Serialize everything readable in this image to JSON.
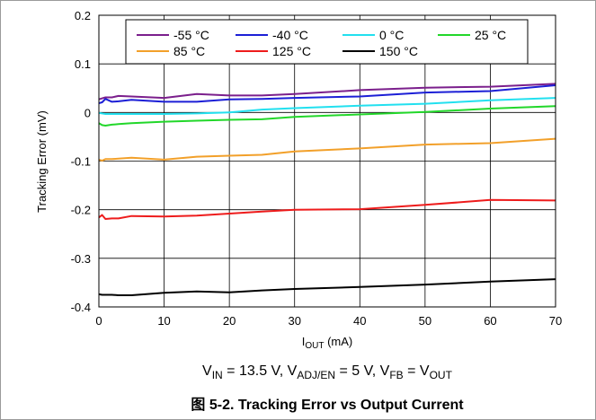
{
  "chart_data": {
    "type": "line",
    "title": "",
    "caption": "图 5-2. Tracking Error vs Output Current",
    "conditions": {
      "p1": "V",
      "p1_sub": "IN",
      "p2": " = 13.5 V, V",
      "p2_sub": "ADJ/EN",
      "p3": " = 5 V, V",
      "p3_sub": "FB",
      "p4": " = V",
      "p4_sub": "OUT"
    },
    "xlabel": {
      "main": "I",
      "sub": "OUT",
      "unit": " (mA)"
    },
    "ylabel": "Tracking Error (mV)",
    "xlim": [
      0,
      70
    ],
    "ylim": [
      -0.4,
      0.2
    ],
    "xticks": [
      "0",
      "10",
      "20",
      "30",
      "40",
      "50",
      "60",
      "70"
    ],
    "yticks": [
      "0.2",
      "0.1",
      "0",
      "-0.1",
      "-0.2",
      "-0.3",
      "-0.4"
    ],
    "grid": true,
    "legend_position": "top",
    "series": [
      {
        "name": "-55 °C",
        "color": "#7b1f8c",
        "x": [
          0,
          0.5,
          1,
          2,
          3,
          5,
          10,
          15,
          20,
          25,
          30,
          40,
          50,
          60,
          70
        ],
        "y": [
          0.027,
          0.029,
          0.031,
          0.031,
          0.034,
          0.033,
          0.03,
          0.038,
          0.035,
          0.035,
          0.038,
          0.046,
          0.051,
          0.053,
          0.059
        ]
      },
      {
        "name": "-40 °C",
        "color": "#1c1fd6",
        "x": [
          0,
          0.5,
          1,
          2,
          3,
          5,
          10,
          15,
          20,
          25,
          30,
          40,
          50,
          60,
          70
        ],
        "y": [
          0.019,
          0.021,
          0.028,
          0.022,
          0.023,
          0.026,
          0.022,
          0.022,
          0.027,
          0.028,
          0.03,
          0.033,
          0.041,
          0.044,
          0.056
        ]
      },
      {
        "name": "0 °C",
        "color": "#22e0ef",
        "x": [
          0,
          0.5,
          1,
          2,
          3,
          5,
          10,
          15,
          20,
          25,
          30,
          40,
          50,
          60,
          70
        ],
        "y": [
          -0.001,
          -0.002,
          -0.003,
          -0.003,
          -0.003,
          -0.003,
          -0.003,
          -0.002,
          0.0,
          0.006,
          0.009,
          0.014,
          0.018,
          0.025,
          0.03
        ]
      },
      {
        "name": "25 °C",
        "color": "#22d72a",
        "x": [
          0,
          0.5,
          1,
          2,
          3,
          5,
          10,
          15,
          20,
          25,
          30,
          40,
          50,
          60,
          70
        ],
        "y": [
          -0.022,
          -0.026,
          -0.027,
          -0.025,
          -0.024,
          -0.022,
          -0.019,
          -0.017,
          -0.015,
          -0.014,
          -0.009,
          -0.004,
          0.001,
          0.008,
          0.013
        ]
      },
      {
        "name": "85 °C",
        "color": "#f2a02a",
        "x": [
          0,
          0.5,
          1,
          2,
          3,
          5,
          10,
          15,
          20,
          25,
          30,
          40,
          50,
          60,
          70
        ],
        "y": [
          -0.097,
          -0.099,
          -0.096,
          -0.096,
          -0.095,
          -0.093,
          -0.097,
          -0.091,
          -0.089,
          -0.087,
          -0.08,
          -0.074,
          -0.066,
          -0.063,
          -0.054
        ]
      },
      {
        "name": "125 °C",
        "color": "#ee1c1c",
        "x": [
          0,
          0.5,
          1,
          2,
          3,
          5,
          10,
          15,
          20,
          25,
          30,
          40,
          50,
          60,
          70
        ],
        "y": [
          -0.216,
          -0.211,
          -0.219,
          -0.218,
          -0.218,
          -0.213,
          -0.214,
          -0.212,
          -0.208,
          -0.204,
          -0.2,
          -0.199,
          -0.19,
          -0.18,
          -0.181
        ]
      },
      {
        "name": "150 °C",
        "color": "#000000",
        "x": [
          0,
          0.5,
          1,
          2,
          3,
          5,
          10,
          15,
          20,
          25,
          30,
          40,
          50,
          60,
          70
        ],
        "y": [
          -0.374,
          -0.375,
          -0.375,
          -0.375,
          -0.376,
          -0.376,
          -0.371,
          -0.368,
          -0.37,
          -0.366,
          -0.363,
          -0.359,
          -0.354,
          -0.348,
          -0.343
        ]
      }
    ]
  }
}
